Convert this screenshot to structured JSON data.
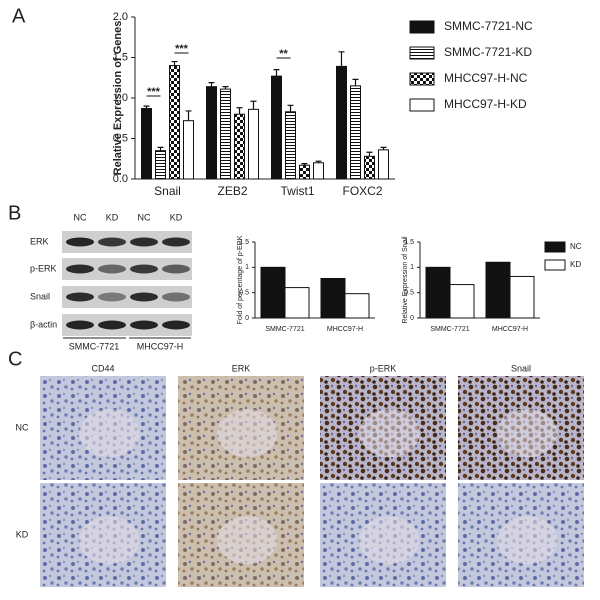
{
  "figure": {
    "panel_labels": [
      "A",
      "B",
      "C"
    ]
  },
  "chart_data": [
    {
      "type": "bar",
      "y_label": "Relative Expression of Genes",
      "categories": [
        "Snail",
        "ZEB2",
        "Twist1",
        "FOXC2"
      ],
      "series": [
        {
          "name": "SMMC-7721-NC",
          "color": "#111111",
          "pattern": "solid",
          "values": [
            0.87,
            1.14,
            1.27,
            1.39
          ],
          "errors": [
            0.03,
            0.05,
            0.08,
            0.18
          ]
        },
        {
          "name": "SMMC-7721-KD",
          "color": "#111111",
          "pattern": "horizontal",
          "values": [
            0.35,
            1.11,
            0.83,
            1.15
          ],
          "errors": [
            0.04,
            0.03,
            0.08,
            0.08
          ]
        },
        {
          "name": "MHCC97-H-NC",
          "color": "#111111",
          "pattern": "checker",
          "values": [
            1.4,
            0.8,
            0.17,
            0.28
          ],
          "errors": [
            0.05,
            0.08,
            0.02,
            0.05
          ]
        },
        {
          "name": "MHCC97-H-KD",
          "color": "#111111",
          "pattern": "open",
          "values": [
            0.72,
            0.86,
            0.2,
            0.36
          ],
          "errors": [
            0.12,
            0.1,
            0.02,
            0.03
          ]
        }
      ],
      "annotations": [
        "***",
        "***",
        "**"
      ],
      "ylim": [
        0,
        2.0
      ],
      "yticks": [
        {
          "value": 0,
          "label": "0.0"
        },
        0.5,
        {
          "value": 1,
          "label": "1.0"
        },
        1.5,
        {
          "value": 2,
          "label": "2.0"
        }
      ],
      "legend": "right"
    },
    {
      "type": "bar",
      "y_label": "Fold of percentage of p-ERK",
      "categories": [
        "SMMC-7721",
        "MHCC97-H"
      ],
      "series": [
        {
          "color": "#111111",
          "pattern": "solid",
          "values": [
            1.0,
            0.78
          ]
        },
        {
          "color": "#111111",
          "pattern": "open",
          "values": [
            0.6,
            0.48
          ]
        }
      ],
      "ylim": [
        0,
        1.5
      ],
      "yticks": [
        0,
        0.5,
        1,
        1.5
      ],
      "legend": "none"
    },
    {
      "type": "bar",
      "y_label": "Relative Expression of Snail",
      "categories": [
        "SMMC-7721",
        "MHCC97-H"
      ],
      "series": [
        {
          "name": "NC",
          "color": "#111111",
          "pattern": "solid",
          "values": [
            1.0,
            1.1
          ]
        },
        {
          "name": "KD",
          "color": "#111111",
          "pattern": "open",
          "values": [
            0.66,
            0.82
          ]
        }
      ],
      "ylim": [
        0,
        1.5
      ],
      "yticks": [
        0,
        0.5,
        1,
        1.5
      ],
      "legend": "right"
    }
  ],
  "blot": {
    "columns": [
      "NC",
      "KD",
      "NC",
      "KD"
    ],
    "rows": [
      "ERK",
      "p-ERK",
      "Snail",
      "β-actin"
    ],
    "groups": [
      "SMMC-7721",
      "MHCC97-H"
    ]
  },
  "ihc": {
    "columns": [
      "CD44",
      "ERK",
      "p-ERK",
      "Snail"
    ],
    "rows": [
      "NC",
      "KD"
    ]
  }
}
